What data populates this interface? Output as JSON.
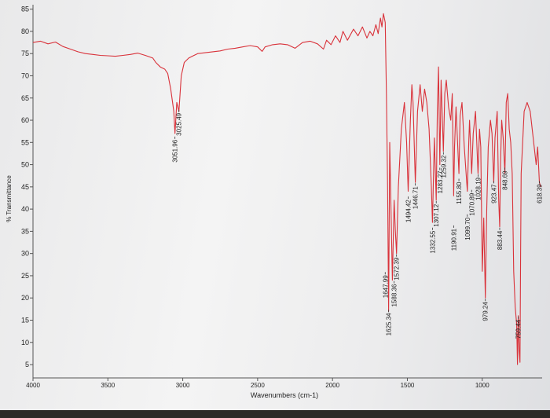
{
  "chart_data": {
    "type": "line",
    "title": "",
    "xlabel": "Wavenumbers (cm-1)",
    "ylabel": "% Transmittance",
    "xlim": [
      4000,
      600
    ],
    "ylim": [
      2,
      86
    ],
    "x_ticks": [
      4000,
      3500,
      3000,
      2500,
      2000,
      1500,
      1000
    ],
    "y_ticks": [
      5,
      10,
      15,
      20,
      25,
      30,
      35,
      40,
      45,
      50,
      55,
      60,
      65,
      70,
      75,
      80,
      85
    ],
    "grid": false,
    "colors": {
      "trace": "#d9323a",
      "axis": "#555555",
      "text": "#222222"
    },
    "series": [
      {
        "points": [
          [
            4000,
            77.5
          ],
          [
            3950,
            77.8
          ],
          [
            3900,
            77.2
          ],
          [
            3850,
            77.6
          ],
          [
            3800,
            76.6
          ],
          [
            3750,
            76.0
          ],
          [
            3700,
            75.4
          ],
          [
            3650,
            75.0
          ],
          [
            3600,
            74.8
          ],
          [
            3550,
            74.6
          ],
          [
            3500,
            74.5
          ],
          [
            3450,
            74.4
          ],
          [
            3400,
            74.6
          ],
          [
            3350,
            74.8
          ],
          [
            3300,
            75.1
          ],
          [
            3250,
            74.6
          ],
          [
            3200,
            74.0
          ],
          [
            3180,
            73.0
          ],
          [
            3150,
            72.0
          ],
          [
            3120,
            71.5
          ],
          [
            3100,
            70.5
          ],
          [
            3080,
            67.0
          ],
          [
            3060,
            62.0
          ],
          [
            3051.96,
            57.0
          ],
          [
            3040,
            64.0
          ],
          [
            3025.49,
            62.0
          ],
          [
            3010,
            70.0
          ],
          [
            2990,
            73.0
          ],
          [
            2960,
            74.0
          ],
          [
            2930,
            74.5
          ],
          [
            2900,
            75.0
          ],
          [
            2850,
            75.2
          ],
          [
            2800,
            75.4
          ],
          [
            2750,
            75.6
          ],
          [
            2700,
            76.0
          ],
          [
            2650,
            76.2
          ],
          [
            2600,
            76.5
          ],
          [
            2550,
            76.8
          ],
          [
            2500,
            76.5
          ],
          [
            2470,
            75.5
          ],
          [
            2450,
            76.5
          ],
          [
            2400,
            77.0
          ],
          [
            2350,
            77.2
          ],
          [
            2300,
            77.0
          ],
          [
            2250,
            76.2
          ],
          [
            2200,
            77.5
          ],
          [
            2150,
            77.8
          ],
          [
            2100,
            77.2
          ],
          [
            2060,
            76.0
          ],
          [
            2040,
            78.0
          ],
          [
            2010,
            77.0
          ],
          [
            1980,
            79.0
          ],
          [
            1950,
            77.5
          ],
          [
            1930,
            80.0
          ],
          [
            1900,
            78.0
          ],
          [
            1860,
            80.5
          ],
          [
            1830,
            79.0
          ],
          [
            1800,
            81.0
          ],
          [
            1770,
            78.5
          ],
          [
            1750,
            80.0
          ],
          [
            1730,
            79.0
          ],
          [
            1710,
            81.5
          ],
          [
            1695,
            79.5
          ],
          [
            1680,
            83.0
          ],
          [
            1670,
            81.0
          ],
          [
            1660,
            84.0
          ],
          [
            1647.99,
            82.0
          ],
          [
            1640,
            66.0
          ],
          [
            1632,
            45.0
          ],
          [
            1625.34,
            17.0
          ],
          [
            1618,
            55.0
          ],
          [
            1600,
            24.0
          ],
          [
            1588.36,
            42.0
          ],
          [
            1580,
            35.0
          ],
          [
            1572.39,
            30.0
          ],
          [
            1560,
            45.0
          ],
          [
            1540,
            58.0
          ],
          [
            1520,
            64.0
          ],
          [
            1505,
            55.0
          ],
          [
            1494.42,
            44.0
          ],
          [
            1480,
            60.0
          ],
          [
            1470,
            68.0
          ],
          [
            1462,
            64.0
          ],
          [
            1446.71,
            46.0
          ],
          [
            1432,
            62.0
          ],
          [
            1415,
            68.0
          ],
          [
            1400,
            62.0
          ],
          [
            1385,
            67.0
          ],
          [
            1370,
            64.0
          ],
          [
            1355,
            58.0
          ],
          [
            1340,
            45.0
          ],
          [
            1332.55,
            37.0
          ],
          [
            1320,
            56.0
          ],
          [
            1307.12,
            42.0
          ],
          [
            1300,
            62.0
          ],
          [
            1292,
            72.0
          ],
          [
            1283.27,
            50.0
          ],
          [
            1275,
            69.0
          ],
          [
            1259.32,
            53.0
          ],
          [
            1250,
            66.0
          ],
          [
            1240,
            69.0
          ],
          [
            1225,
            63.0
          ],
          [
            1210,
            60.0
          ],
          [
            1200,
            66.0
          ],
          [
            1190.91,
            43.0
          ],
          [
            1185,
            54.0
          ],
          [
            1175,
            63.0
          ],
          [
            1155.8,
            48.0
          ],
          [
            1148,
            61.0
          ],
          [
            1135,
            64.0
          ],
          [
            1120,
            54.0
          ],
          [
            1099.7,
            44.0
          ],
          [
            1090,
            55.0
          ],
          [
            1085,
            60.0
          ],
          [
            1070.89,
            48.0
          ],
          [
            1060,
            57.0
          ],
          [
            1045,
            62.0
          ],
          [
            1028.19,
            48.0
          ],
          [
            1018,
            58.0
          ],
          [
            1010,
            54.0
          ],
          [
            1000,
            26.0
          ],
          [
            990,
            38.0
          ],
          [
            979.24,
            20.0
          ],
          [
            970,
            40.0
          ],
          [
            960,
            54.0
          ],
          [
            945,
            60.0
          ],
          [
            935,
            57.0
          ],
          [
            923.47,
            46.0
          ],
          [
            915,
            56.0
          ],
          [
            900,
            62.0
          ],
          [
            890,
            42.0
          ],
          [
            883.44,
            36.0
          ],
          [
            878,
            50.0
          ],
          [
            870,
            60.0
          ],
          [
            860,
            56.0
          ],
          [
            848.69,
            48.0
          ],
          [
            840,
            64.0
          ],
          [
            830,
            66.0
          ],
          [
            820,
            58.0
          ],
          [
            810,
            55.0
          ],
          [
            800,
            48.0
          ],
          [
            790,
            26.0
          ],
          [
            780,
            18.0
          ],
          [
            770,
            14.0
          ],
          [
            765,
            5.0
          ],
          [
            759.44,
            16.0
          ],
          [
            753,
            8.0
          ],
          [
            748,
            5.5
          ],
          [
            744,
            30.0
          ],
          [
            740,
            48.0
          ],
          [
            720,
            62.0
          ],
          [
            700,
            64.0
          ],
          [
            680,
            62.0
          ],
          [
            660,
            56.0
          ],
          [
            640,
            50.0
          ],
          [
            630,
            54.0
          ],
          [
            618.39,
            46.0
          ],
          [
            610,
            45.0
          ]
        ]
      }
    ],
    "peak_labels": [
      {
        "label": "3051.96",
        "x": 3051.96,
        "y": 56.5
      },
      {
        "label": "3025.49",
        "x": 3025.49,
        "y": 62.5
      },
      {
        "label": "1647.99",
        "x": 1647.99,
        "y": 26.0
      },
      {
        "label": "1625.34",
        "x": 1625.34,
        "y": 17.5
      },
      {
        "label": "1588.36",
        "x": 1588.36,
        "y": 24.0
      },
      {
        "label": "1572.39",
        "x": 1572.39,
        "y": 30.0
      },
      {
        "label": "1494.42",
        "x": 1494.42,
        "y": 43.0
      },
      {
        "label": "1446.71",
        "x": 1446.71,
        "y": 46.0
      },
      {
        "label": "1332.55",
        "x": 1332.55,
        "y": 36.0
      },
      {
        "label": "1307.12",
        "x": 1307.12,
        "y": 42.0
      },
      {
        "label": "1283.27",
        "x": 1283.27,
        "y": 49.5
      },
      {
        "label": "1259.32",
        "x": 1259.32,
        "y": 53.0
      },
      {
        "label": "1190.91",
        "x": 1190.91,
        "y": 36.5
      },
      {
        "label": "1155.80",
        "x": 1155.8,
        "y": 47.0
      },
      {
        "label": "1099.70",
        "x": 1099.7,
        "y": 39.0
      },
      {
        "label": "1070.89",
        "x": 1070.89,
        "y": 44.5
      },
      {
        "label": "1028.19",
        "x": 1028.19,
        "y": 48.0
      },
      {
        "label": "979.24",
        "x": 979.24,
        "y": 20.0
      },
      {
        "label": "923.47",
        "x": 923.47,
        "y": 46.5
      },
      {
        "label": "883.44",
        "x": 883.44,
        "y": 36.0
      },
      {
        "label": "848.69",
        "x": 848.69,
        "y": 49.5
      },
      {
        "label": "759.44",
        "x": 759.44,
        "y": 16.0
      },
      {
        "label": "618.39",
        "x": 618.39,
        "y": 46.5
      }
    ]
  }
}
